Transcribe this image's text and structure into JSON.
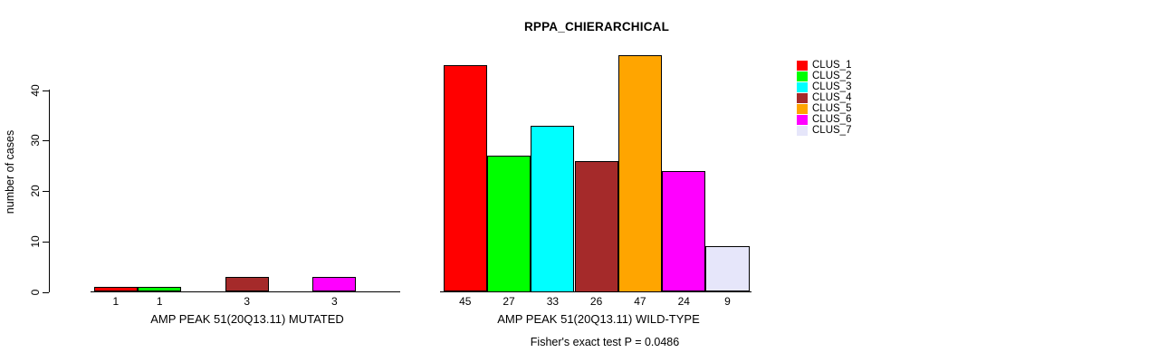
{
  "chart_data": {
    "type": "bar",
    "title": "RPPA_CHIERARCHICAL",
    "ylabel": "number of cases",
    "xlabel": "",
    "yticks": [
      0,
      10,
      20,
      30,
      40
    ],
    "ylim": [
      0,
      47
    ],
    "grid": false,
    "legend_position": "right",
    "series_names": [
      "CLUS_1",
      "CLUS_2",
      "CLUS_3",
      "CLUS_4",
      "CLUS_5",
      "CLUS_6",
      "CLUS_7"
    ],
    "legend": [
      {
        "label": "CLUS_1",
        "color": "#FF0000"
      },
      {
        "label": "CLUS_2",
        "color": "#00FF00"
      },
      {
        "label": "CLUS_3",
        "color": "#00FFFF"
      },
      {
        "label": "CLUS_4",
        "color": "#A52A2A"
      },
      {
        "label": "CLUS_5",
        "color": "#FFA500"
      },
      {
        "label": "CLUS_6",
        "color": "#FF00FF"
      },
      {
        "label": "CLUS_7",
        "color": "#E6E6FA"
      }
    ],
    "groups": [
      {
        "label": "AMP PEAK 51(20Q13.11) MUTATED",
        "values": [
          1,
          1,
          0,
          3,
          0,
          3,
          0
        ]
      },
      {
        "label": "AMP PEAK 51(20Q13.11) WILD-TYPE",
        "values": [
          45,
          27,
          33,
          26,
          47,
          24,
          9
        ]
      }
    ],
    "annotation": "Fisher's exact test P = 0.0486",
    "axis_color": "#000000",
    "text_color": "#000000",
    "background_color": "#FFFFFF"
  }
}
